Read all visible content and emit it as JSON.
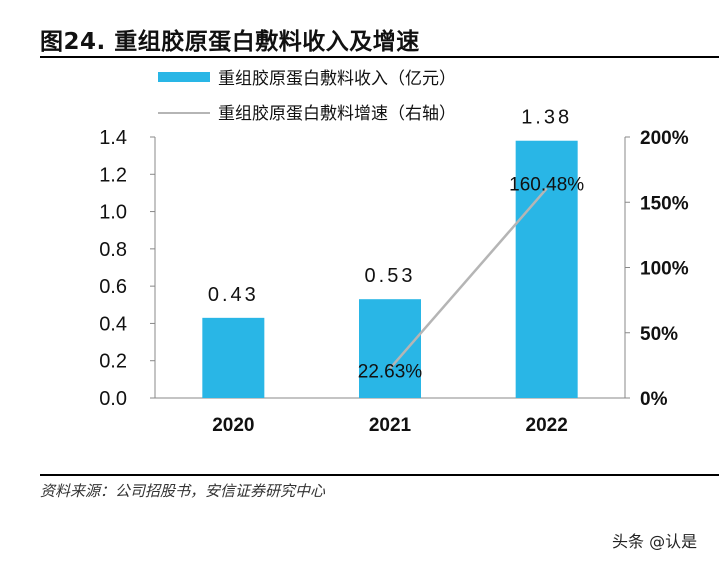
{
  "title": "图24. 重组胶原蛋白敷料收入及增速",
  "source": "资料来源：公司招股书，安信证券研究中心",
  "watermark": "头条 @认是",
  "chart_data": {
    "type": "bar+line",
    "categories": [
      "2020",
      "2021",
      "2022"
    ],
    "series": [
      {
        "name": "重组胶原蛋白敷料收入（亿元）",
        "type": "bar",
        "axis": "left",
        "color": "#29b6e6",
        "values": [
          0.43,
          0.53,
          1.38
        ],
        "labels": [
          "0.43",
          "0.53",
          "1.38"
        ]
      },
      {
        "name": "重组胶原蛋白敷料增速（右轴）",
        "type": "line",
        "axis": "right",
        "color": "#b5b5b5",
        "values": [
          null,
          22.63,
          160.48
        ],
        "labels": [
          "",
          "22.63%",
          "160.48%"
        ]
      }
    ],
    "left_axis": {
      "ylim": [
        0,
        1.4
      ],
      "ticks": [
        "0.0",
        "0.2",
        "0.4",
        "0.6",
        "0.8",
        "1.0",
        "1.2",
        "1.4"
      ]
    },
    "right_axis": {
      "ylim": [
        0,
        200
      ],
      "ticks": [
        "0%",
        "50%",
        "100%",
        "150%",
        "200%"
      ]
    },
    "grid": false,
    "legend_position": "top"
  }
}
